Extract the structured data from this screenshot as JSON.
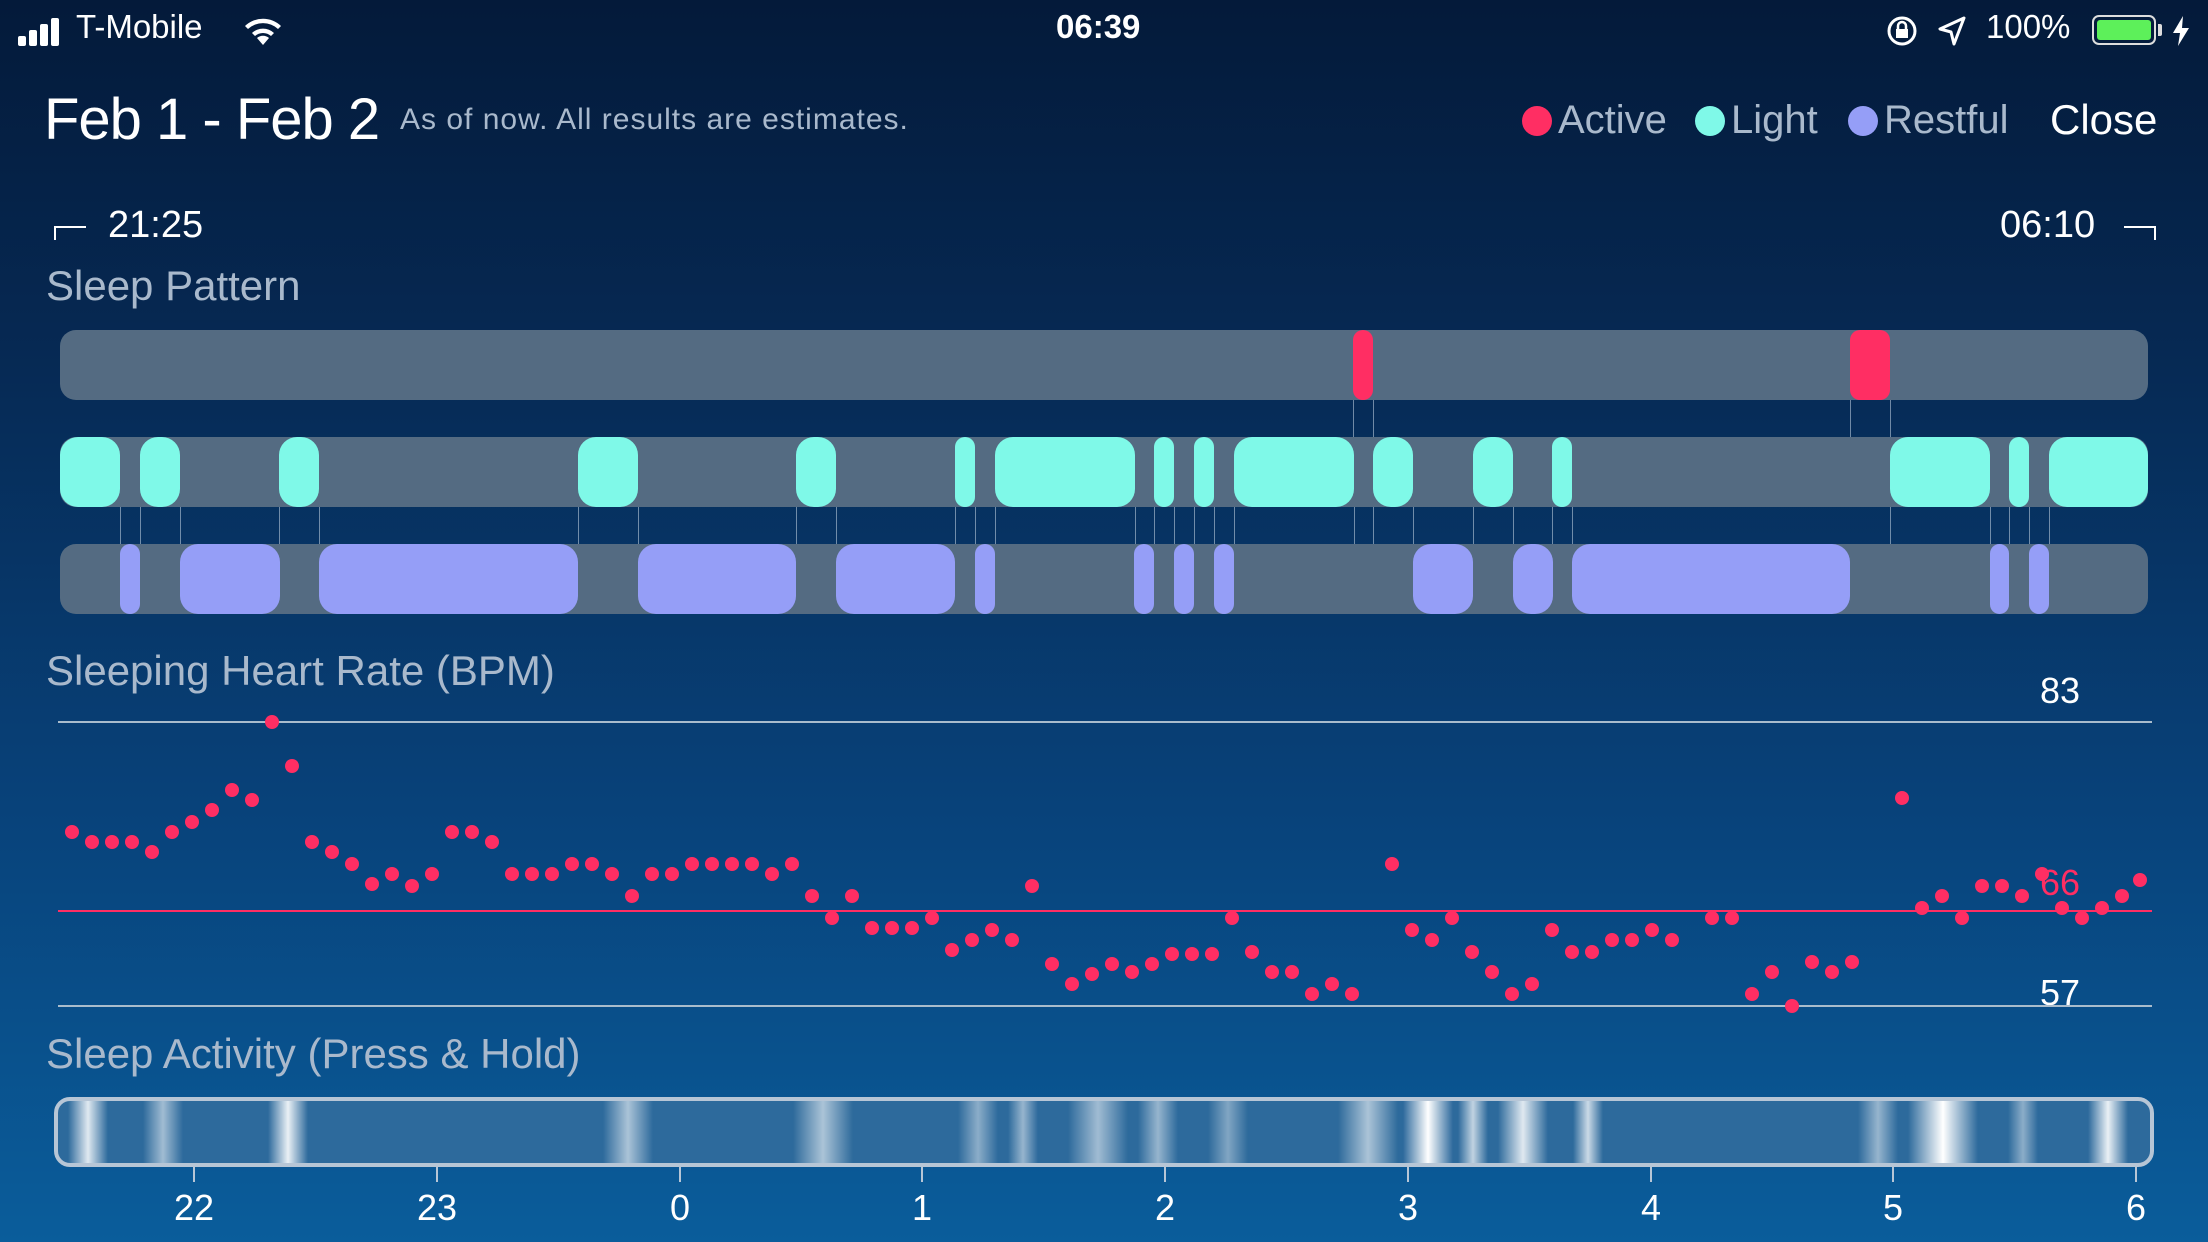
{
  "status_bar": {
    "carrier": "T-Mobile",
    "time": "06:39",
    "battery": "100%",
    "battery_level": 1.0,
    "icons": [
      "signal-icon",
      "wifi-icon",
      "orientation-lock-icon",
      "location-icon",
      "battery-icon",
      "charging-icon"
    ]
  },
  "header": {
    "title": "Feb 1 - Feb 2",
    "subtitle": "As of now. All results are estimates.",
    "close_label": "Close",
    "legend": [
      {
        "label": "Active",
        "color": "#ff2e63"
      },
      {
        "label": "Light",
        "color": "#7ff9e8"
      },
      {
        "label": "Restful",
        "color": "#959ef7"
      }
    ]
  },
  "range": {
    "start": "21:25",
    "end": "06:10"
  },
  "sleep_pattern": {
    "title": "Sleep Pattern"
  },
  "heart_rate": {
    "title": "Sleeping Heart Rate (BPM)",
    "max": "83",
    "avg": "66",
    "min": "57"
  },
  "sleep_activity": {
    "title": "Sleep Activity (Press & Hold)",
    "axis_labels": [
      "22",
      "23",
      "0",
      "1",
      "2",
      "3",
      "4",
      "5",
      "6"
    ]
  }
}
